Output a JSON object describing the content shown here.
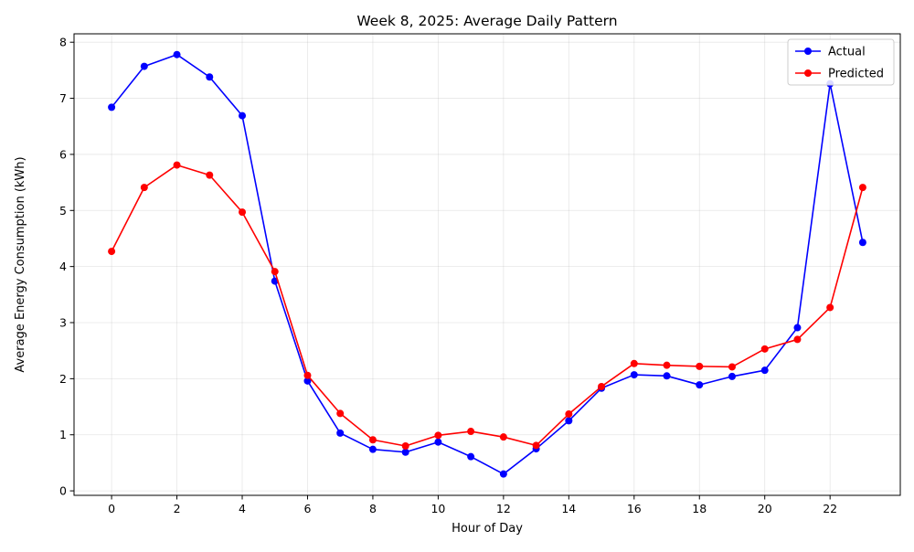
{
  "chart_data": {
    "type": "line",
    "title": "Week 8, 2025: Average Daily Pattern",
    "xlabel": "Hour of Day",
    "ylabel": "Average Energy Consumption (kWh)",
    "x": [
      0,
      1,
      2,
      3,
      4,
      5,
      6,
      7,
      8,
      9,
      10,
      11,
      12,
      13,
      14,
      15,
      16,
      17,
      18,
      19,
      20,
      21,
      22,
      23
    ],
    "xlim": [
      -1.15,
      24.15
    ],
    "ylim": [
      -0.08,
      8.15
    ],
    "xticks": [
      0,
      2,
      4,
      6,
      8,
      10,
      12,
      14,
      16,
      18,
      20,
      22
    ],
    "yticks": [
      0,
      1,
      2,
      3,
      4,
      5,
      6,
      7,
      8
    ],
    "grid": true,
    "legend_position": "upper right",
    "series": [
      {
        "name": "Actual",
        "color": "#0000ff",
        "marker": "circle",
        "values": [
          6.84,
          7.57,
          7.78,
          7.38,
          6.69,
          3.74,
          1.96,
          1.03,
          0.74,
          0.69,
          0.87,
          0.61,
          0.3,
          0.75,
          1.25,
          1.83,
          2.07,
          2.05,
          1.89,
          2.04,
          2.15,
          2.91,
          7.26,
          4.43
        ]
      },
      {
        "name": "Predicted",
        "color": "#ff0000",
        "marker": "circle",
        "values": [
          4.27,
          5.41,
          5.81,
          5.63,
          4.97,
          3.91,
          2.06,
          1.38,
          0.91,
          0.8,
          0.99,
          1.06,
          0.96,
          0.81,
          1.37,
          1.86,
          2.27,
          2.24,
          2.22,
          2.21,
          2.53,
          2.7,
          3.27,
          5.41
        ]
      }
    ]
  }
}
